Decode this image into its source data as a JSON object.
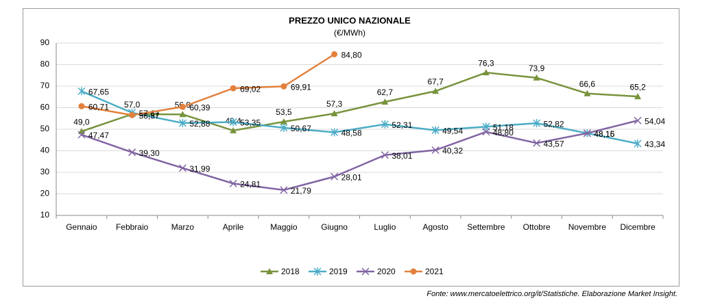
{
  "chart_data": {
    "type": "line",
    "title": "PREZZO UNICO NAZIONALE",
    "subtitle": "(€/MWh)",
    "categories": [
      "Gennaio",
      "Febbraio",
      "Marzo",
      "Aprile",
      "Maggio",
      "Giugno",
      "Luglio",
      "Agosto",
      "Settembre",
      "Ottobre",
      "Novembre",
      "Dicembre"
    ],
    "series": [
      {
        "name": "2018",
        "color": "#77933c",
        "marker": "triangle",
        "values": [
          49.0,
          57.0,
          56.9,
          49.4,
          53.5,
          57.3,
          62.7,
          67.7,
          76.3,
          73.9,
          66.6,
          65.2
        ],
        "value_labels": [
          "49,0",
          "57,0",
          "56,9",
          "49,4",
          "53,5",
          "57,3",
          "62,7",
          "67,7",
          "76,3",
          "73,9",
          "66,6",
          "65,2"
        ]
      },
      {
        "name": "2019",
        "color": "#4bacc6",
        "marker": "star",
        "values": [
          67.65,
          57.67,
          52.88,
          53.35,
          50.67,
          48.58,
          52.31,
          49.54,
          51.18,
          52.82,
          48.15,
          43.34
        ],
        "value_labels": [
          "67,65",
          "57,67",
          "52,88",
          "53,35",
          "50,67",
          "48,58",
          "52,31",
          "49,54",
          "51,18",
          "52,82",
          "48,15",
          "43,34"
        ]
      },
      {
        "name": "2020",
        "color": "#8064a2",
        "marker": "x",
        "values": [
          47.47,
          39.3,
          31.99,
          24.81,
          21.79,
          28.01,
          38.01,
          40.32,
          48.8,
          43.57,
          48.16,
          54.04
        ],
        "value_labels": [
          "47,47",
          "39,30",
          "31,99",
          "24,81",
          "21,79",
          "28,01",
          "38,01",
          "40,32",
          "48,80",
          "43,57",
          "48,16",
          "54,04"
        ]
      },
      {
        "name": "2021",
        "color": "#e2803c",
        "marker": "circle",
        "values": [
          60.71,
          56.57,
          60.39,
          69.02,
          69.91,
          84.8,
          null,
          null,
          null,
          null,
          null,
          null
        ],
        "value_labels": [
          "60,71",
          "56,57",
          "60,39",
          "69,02",
          "69,91",
          "84,80",
          null,
          null,
          null,
          null,
          null,
          null
        ]
      }
    ],
    "ylim": [
      10,
      90
    ],
    "yticks": [
      10,
      20,
      30,
      40,
      50,
      60,
      70,
      80,
      90
    ],
    "grid": true,
    "legend": "bottom",
    "source": "Fonte: www.mercatoelettrico.org/it/Statistiche. Elaborazione Market Insight."
  }
}
